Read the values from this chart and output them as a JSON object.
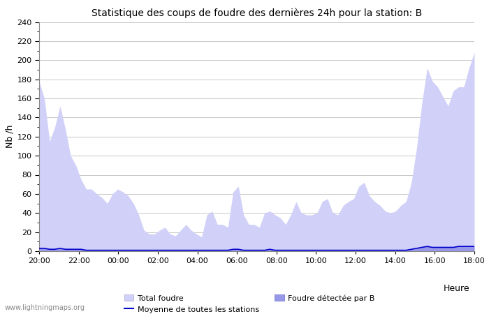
{
  "title": "Statistique des coups de foudre des dernières 24h pour la station: B",
  "xlabel": "Heure",
  "ylabel": "Nb /h",
  "ylim": [
    0,
    240
  ],
  "yticks": [
    0,
    20,
    40,
    60,
    80,
    100,
    120,
    140,
    160,
    180,
    200,
    220,
    240
  ],
  "xtick_labels": [
    "20:00",
    "22:00",
    "00:00",
    "02:00",
    "04:00",
    "06:00",
    "08:00",
    "10:00",
    "12:00",
    "14:00",
    "16:00",
    "18:00"
  ],
  "watermark": "www.lightningmaps.org",
  "fill_total_color": "#d0d0f8",
  "fill_detected_color": "#9898e8",
  "line_color": "#0000cc",
  "background_color": "#ffffff",
  "grid_color": "#c8c8c8",
  "total_foudre": [
    178,
    160,
    115,
    130,
    152,
    128,
    100,
    90,
    75,
    65,
    65,
    60,
    56,
    50,
    60,
    65,
    62,
    58,
    50,
    38,
    22,
    18,
    18,
    22,
    25,
    18,
    16,
    22,
    28,
    22,
    18,
    15,
    38,
    42,
    28,
    28,
    25,
    62,
    68,
    38,
    28,
    28,
    25,
    40,
    42,
    38,
    35,
    28,
    38,
    52,
    40,
    38,
    38,
    40,
    52,
    55,
    40,
    38,
    48,
    52,
    55,
    68,
    72,
    58,
    52,
    48,
    42,
    40,
    42,
    48,
    52,
    72,
    108,
    155,
    192,
    178,
    172,
    162,
    152,
    168,
    172,
    172,
    192,
    208
  ],
  "detected_par_B": [
    4,
    3,
    2,
    2,
    3,
    2,
    2,
    2,
    2,
    1,
    1,
    1,
    1,
    1,
    1,
    1,
    1,
    1,
    1,
    1,
    1,
    1,
    1,
    1,
    1,
    1,
    1,
    1,
    1,
    1,
    1,
    1,
    1,
    1,
    1,
    1,
    1,
    2,
    2,
    1,
    1,
    1,
    1,
    1,
    2,
    1,
    1,
    1,
    1,
    1,
    1,
    1,
    1,
    1,
    1,
    1,
    1,
    1,
    1,
    1,
    1,
    1,
    1,
    1,
    1,
    1,
    1,
    1,
    1,
    1,
    1,
    2,
    3,
    4,
    5,
    4,
    4,
    4,
    4,
    4,
    5,
    5,
    5,
    5
  ],
  "moyenne_stations": [
    3,
    3,
    2,
    2,
    3,
    2,
    2,
    2,
    2,
    1,
    1,
    1,
    1,
    1,
    1,
    1,
    1,
    1,
    1,
    1,
    1,
    1,
    1,
    1,
    1,
    1,
    1,
    1,
    1,
    1,
    1,
    1,
    1,
    1,
    1,
    1,
    1,
    2,
    2,
    1,
    1,
    1,
    1,
    1,
    2,
    1,
    1,
    1,
    1,
    1,
    1,
    1,
    1,
    1,
    1,
    1,
    1,
    1,
    1,
    1,
    1,
    1,
    1,
    1,
    1,
    1,
    1,
    1,
    1,
    1,
    1,
    2,
    3,
    4,
    5,
    4,
    4,
    4,
    4,
    4,
    5,
    5,
    5,
    5
  ],
  "legend_total_label": "Total foudre",
  "legend_detected_label": "Foudre détectée par B",
  "legend_moyenne_label": "Moyenne de toutes les stations"
}
